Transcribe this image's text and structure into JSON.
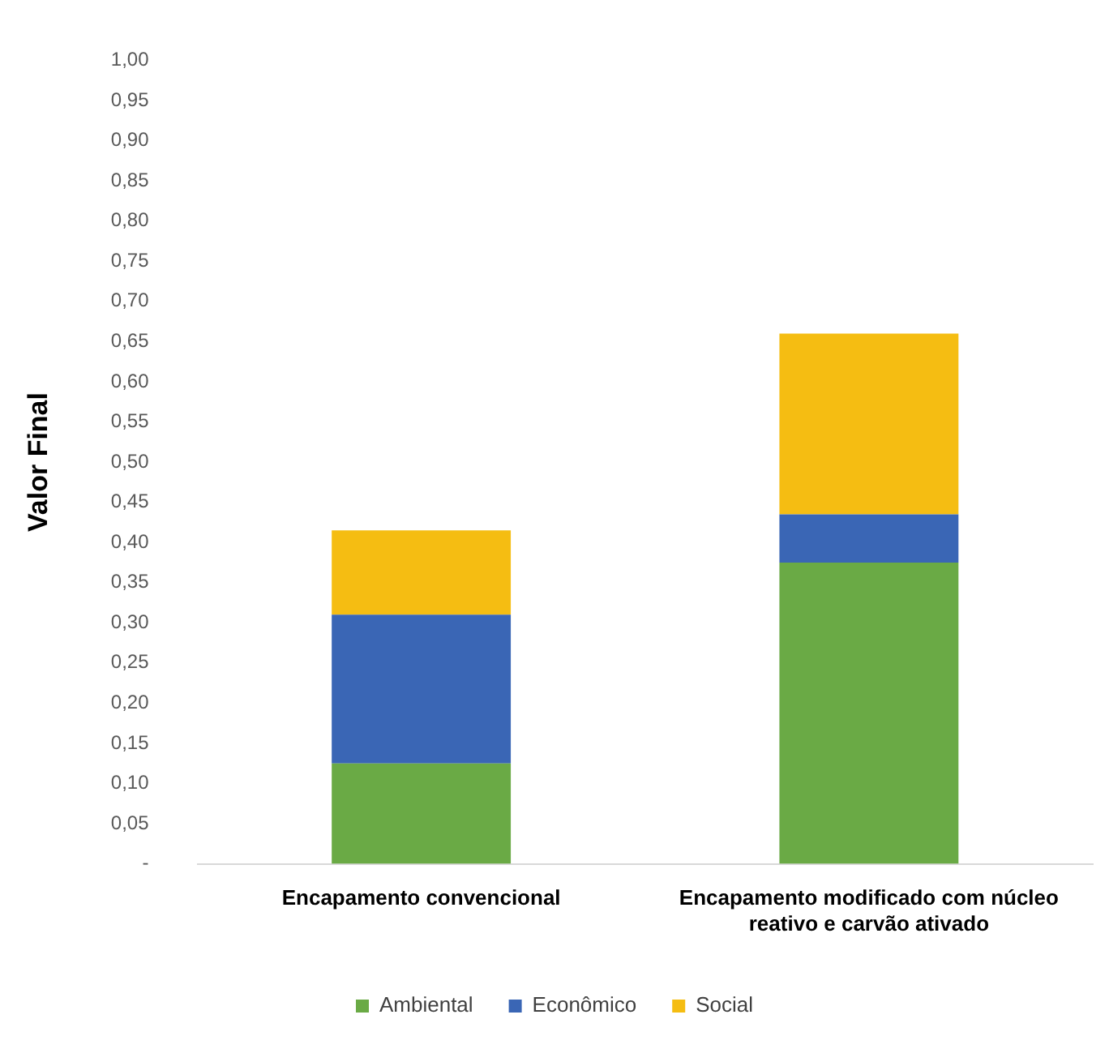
{
  "chart_data": {
    "type": "bar",
    "stacked": true,
    "ylabel": "Valor Final",
    "categories": [
      "Encapamento convencional",
      "Encapamento modificado com núcleo reativo e carvão ativado"
    ],
    "series": [
      {
        "name": "Ambiental",
        "color": "#6aaa45",
        "values": [
          0.125,
          0.375
        ]
      },
      {
        "name": "Econômico",
        "color": "#3a66b5",
        "values": [
          0.185,
          0.06
        ]
      },
      {
        "name": "Social",
        "color": "#f5bd12",
        "values": [
          0.105,
          0.225
        ]
      }
    ],
    "ylim": [
      0,
      1
    ],
    "yticks": [
      {
        "value": 0,
        "label": "-"
      },
      {
        "value": 0.05,
        "label": "0,05"
      },
      {
        "value": 0.1,
        "label": "0,10"
      },
      {
        "value": 0.15,
        "label": "0,15"
      },
      {
        "value": 0.2,
        "label": "0,20"
      },
      {
        "value": 0.25,
        "label": "0,25"
      },
      {
        "value": 0.3,
        "label": "0,30"
      },
      {
        "value": 0.35,
        "label": "0,35"
      },
      {
        "value": 0.4,
        "label": "0,40"
      },
      {
        "value": 0.45,
        "label": "0,45"
      },
      {
        "value": 0.5,
        "label": "0,50"
      },
      {
        "value": 0.55,
        "label": "0,55"
      },
      {
        "value": 0.6,
        "label": "0,60"
      },
      {
        "value": 0.65,
        "label": "0,65"
      },
      {
        "value": 0.7,
        "label": "0,70"
      },
      {
        "value": 0.75,
        "label": "0,75"
      },
      {
        "value": 0.8,
        "label": "0,80"
      },
      {
        "value": 0.85,
        "label": "0,85"
      },
      {
        "value": 0.9,
        "label": "0,90"
      },
      {
        "value": 0.95,
        "label": "0,95"
      },
      {
        "value": 1,
        "label": "1,00"
      }
    ],
    "grid": false,
    "legend": "bottom"
  }
}
